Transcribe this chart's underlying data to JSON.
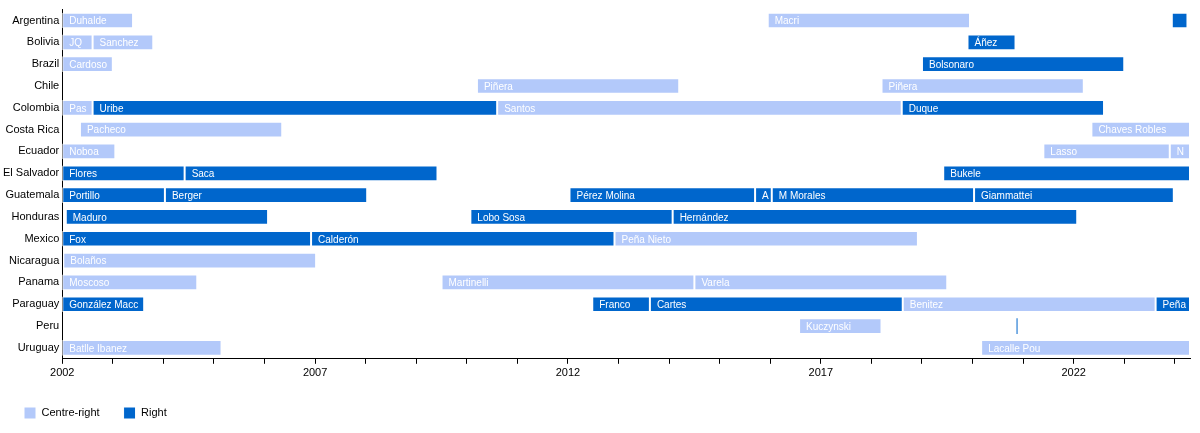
{
  "chart_data": {
    "type": "bar",
    "orientation": "horizontal",
    "legend": "bottom left",
    "grid": false,
    "categories": [
      "Argentina",
      "Bolivia",
      "Brazil",
      "Chile",
      "Colombia",
      "Costa Rica",
      "Ecuador",
      "El Salvador",
      "Guatemala",
      "Honduras",
      "Mexico",
      "Nicaragua",
      "Panama",
      "Paraguay",
      "Peru",
      "Uruguay"
    ],
    "xlim": [
      2002,
      2024.3
    ],
    "xticks": [
      2002,
      {
        "value": 2003,
        "label": null
      },
      {
        "value": 2004,
        "label": null
      },
      {
        "value": 2005,
        "label": null
      },
      {
        "value": 2006,
        "label": null
      },
      2007,
      {
        "value": 2008,
        "label": null
      },
      {
        "value": 2009,
        "label": null
      },
      {
        "value": 2010,
        "label": null
      },
      {
        "value": 2011,
        "label": null
      },
      2012,
      {
        "value": 2013,
        "label": null
      },
      {
        "value": 2014,
        "label": null
      },
      {
        "value": 2015,
        "label": null
      },
      {
        "value": 2016,
        "label": null
      },
      2017,
      {
        "value": 2018,
        "label": null
      },
      {
        "value": 2019,
        "label": null
      },
      {
        "value": 2020,
        "label": null
      },
      {
        "value": 2021,
        "label": null
      },
      2022,
      {
        "value": 2023,
        "label": null
      },
      {
        "value": 2024,
        "label": null
      }
    ],
    "series": [
      {
        "name": "Centre-right",
        "color": "#b3c9fa",
        "base": [
          2002,
          2002,
          2002,
          2010.2,
          2002,
          2002.35,
          2002,
          null,
          null,
          null,
          2012.92,
          2002.02,
          2002,
          2018.62,
          2016.57,
          2002
        ],
        "values": [
          1.4,
          0.6,
          1.0,
          4.0,
          0.6,
          4.0,
          1.05,
          null,
          null,
          null,
          6.0,
          5.0,
          2.67,
          5.0,
          1.63,
          3.15
        ]
      },
      {
        "color": "#b3c9fa",
        "base": [
          2015.95,
          2002.6,
          null,
          2018.2,
          2010.6,
          2022.35,
          2021.4,
          null,
          null,
          null,
          null,
          null,
          2009.5,
          null,
          null,
          2020.17
        ],
        "values": [
          4.0,
          1.2,
          null,
          4.0,
          8.0,
          1.95,
          2.5,
          null,
          null,
          null,
          null,
          null,
          5.0,
          null,
          null,
          4.13
        ]
      },
      {
        "color": "#b3c9fa",
        "base": [
          null,
          null,
          null,
          null,
          null,
          null,
          2023.9,
          null,
          null,
          null,
          null,
          null,
          2014.5,
          null,
          null,
          null
        ],
        "values": [
          null,
          null,
          null,
          null,
          null,
          null,
          0.4,
          null,
          null,
          null,
          null,
          null,
          5.0,
          null,
          null,
          null
        ]
      },
      {
        "name": "Right",
        "color": "#0066cc",
        "base": [
          2023.94,
          2019.9,
          2019.0,
          null,
          2002.6,
          null,
          null,
          2002,
          2002,
          2002.07,
          2002,
          null,
          null,
          2002,
          2020.87,
          null
        ],
        "values": [
          0.31,
          0.95,
          4.0,
          null,
          8.0,
          null,
          null,
          2.42,
          2.03,
          4.0,
          4.92,
          null,
          null,
          1.62,
          0.02,
          null
        ]
      },
      {
        "color": "#0066cc",
        "base": [
          null,
          null,
          null,
          null,
          2018.6,
          null,
          null,
          2004.42,
          2004.03,
          2010.07,
          2006.92,
          null,
          null,
          2012.48,
          null,
          null
        ],
        "values": [
          null,
          null,
          null,
          null,
          4.0,
          null,
          null,
          5.0,
          4.0,
          4.0,
          6.0,
          null,
          null,
          1.14,
          null,
          null
        ]
      },
      {
        "color": "#0066cc",
        "base": [
          null,
          null,
          null,
          null,
          null,
          null,
          null,
          2019.42,
          2012.03,
          2014.07,
          null,
          null,
          null,
          2013.62,
          null,
          null
        ],
        "values": [
          null,
          null,
          null,
          null,
          null,
          null,
          null,
          4.88,
          3.67,
          8.0,
          null,
          null,
          null,
          5.0,
          null,
          null
        ]
      },
      {
        "color": "#0066cc",
        "base": [
          null,
          null,
          null,
          null,
          null,
          null,
          null,
          null,
          2015.7,
          null,
          null,
          null,
          null,
          2023.62,
          null,
          null
        ],
        "values": [
          null,
          null,
          null,
          null,
          null,
          null,
          null,
          null,
          0.33,
          null,
          null,
          null,
          null,
          0.68,
          null,
          null
        ]
      },
      {
        "color": "#0066cc",
        "base": [
          null,
          null,
          null,
          null,
          null,
          null,
          null,
          null,
          2016.03,
          null,
          null,
          null,
          null,
          null,
          null,
          null
        ],
        "values": [
          null,
          null,
          null,
          null,
          null,
          null,
          null,
          null,
          4.0,
          null,
          null,
          null,
          null,
          null,
          null,
          null
        ]
      },
      {
        "color": "#0066cc",
        "base": [
          null,
          null,
          null,
          null,
          null,
          null,
          null,
          null,
          2020.03,
          null,
          null,
          null,
          null,
          null,
          null,
          null
        ],
        "values": [
          null,
          null,
          null,
          null,
          null,
          null,
          null,
          null,
          3.95,
          null,
          null,
          null,
          null,
          null,
          null,
          null
        ]
      }
    ],
    "annotations": [
      {
        "text": "Duhalde",
        "x": 2002,
        "y": "Argentina"
      },
      {
        "text": "Macri",
        "x": 2015.95,
        "y": "Argentina"
      },
      {
        "text": "JQ",
        "x": 2002,
        "y": "Bolivia"
      },
      {
        "text": "Sanchez",
        "x": 2002.6,
        "y": "Bolivia"
      },
      {
        "text": "Áñez",
        "x": 2019.9,
        "y": "Bolivia"
      },
      {
        "text": "Cardoso",
        "x": 2002,
        "y": "Brazil"
      },
      {
        "text": "Bolsonaro",
        "x": 2019.0,
        "y": "Brazil"
      },
      {
        "text": "Piñera",
        "x": 2010.2,
        "y": "Chile"
      },
      {
        "text": "Piñera",
        "x": 2018.2,
        "y": "Chile"
      },
      {
        "text": "Pas",
        "x": 2002,
        "y": "Colombia"
      },
      {
        "text": "Uribe",
        "x": 2002.6,
        "y": "Colombia"
      },
      {
        "text": "Santos",
        "x": 2010.6,
        "y": "Colombia"
      },
      {
        "text": "Duque",
        "x": 2018.6,
        "y": "Colombia"
      },
      {
        "text": "Pacheco",
        "x": 2002.35,
        "y": "Costa Rica"
      },
      {
        "text": "Chaves Robles",
        "x": 2022.35,
        "y": "Costa Rica"
      },
      {
        "text": "Noboa",
        "x": 2002,
        "y": "Ecuador"
      },
      {
        "text": "Lasso",
        "x": 2021.4,
        "y": "Ecuador"
      },
      {
        "text": "N",
        "x": 2023.9,
        "y": "Ecuador"
      },
      {
        "text": "Flores",
        "x": 2002,
        "y": "El Salvador"
      },
      {
        "text": "Saca",
        "x": 2004.42,
        "y": "El Salvador"
      },
      {
        "text": "Bukele",
        "x": 2019.42,
        "y": "El Salvador"
      },
      {
        "text": "Portillo",
        "x": 2002,
        "y": "Guatemala"
      },
      {
        "text": "Berger",
        "x": 2004.03,
        "y": "Guatemala"
      },
      {
        "text": "Pérez Molina",
        "x": 2012.03,
        "y": "Guatemala"
      },
      {
        "text": "A",
        "x": 2015.7,
        "y": "Guatemala"
      },
      {
        "text": "M Morales",
        "x": 2016.03,
        "y": "Guatemala"
      },
      {
        "text": "Giammattei",
        "x": 2020.03,
        "y": "Guatemala"
      },
      {
        "text": "Maduro",
        "x": 2002.07,
        "y": "Honduras"
      },
      {
        "text": "Lobo Sosa",
        "x": 2010.07,
        "y": "Honduras"
      },
      {
        "text": "Hernández",
        "x": 2014.07,
        "y": "Honduras"
      },
      {
        "text": "Fox",
        "x": 2002,
        "y": "Mexico"
      },
      {
        "text": "Calderón",
        "x": 2006.92,
        "y": "Mexico"
      },
      {
        "text": "Peña Nieto",
        "x": 2012.92,
        "y": "Mexico"
      },
      {
        "text": "Bolaños",
        "x": 2002.02,
        "y": "Nicaragua"
      },
      {
        "text": "Moscoso",
        "x": 2002,
        "y": "Panama"
      },
      {
        "text": "Martinelli",
        "x": 2009.5,
        "y": "Panama"
      },
      {
        "text": "Varela",
        "x": 2014.5,
        "y": "Panama"
      },
      {
        "text": "González Macc",
        "x": 2002,
        "y": "Paraguay"
      },
      {
        "text": "Franco",
        "x": 2012.48,
        "y": "Paraguay"
      },
      {
        "text": "Cartes",
        "x": 2013.62,
        "y": "Paraguay"
      },
      {
        "text": "Benitez",
        "x": 2018.62,
        "y": "Paraguay"
      },
      {
        "text": "Peña",
        "x": 2023.62,
        "y": "Paraguay"
      },
      {
        "text": "Kuczynski",
        "x": 2016.57,
        "y": "Peru"
      },
      {
        "text": "Batlle Ibanez",
        "x": 2002,
        "y": "Uruguay"
      },
      {
        "text": "Lacalle Pou",
        "x": 2020.17,
        "y": "Uruguay"
      }
    ]
  }
}
